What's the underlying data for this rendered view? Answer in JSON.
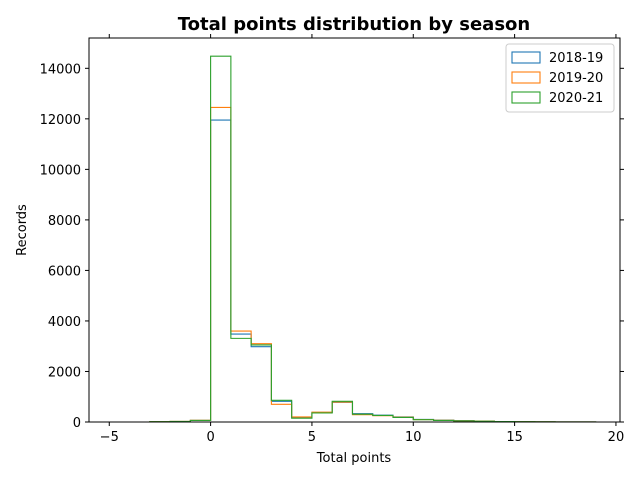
{
  "chart_data": {
    "type": "histogram-step",
    "title": "Total points distribution by season",
    "xlabel": "Total points",
    "ylabel": "Records",
    "xlim": [
      -6,
      20.2
    ],
    "ylim": [
      0,
      15200
    ],
    "xticks": [
      -5,
      0,
      5,
      10,
      15,
      20
    ],
    "yticks": [
      0,
      2000,
      4000,
      6000,
      8000,
      10000,
      12000,
      14000
    ],
    "legend_position": "top-right",
    "bin_edges": [
      -5,
      -4,
      -3,
      -2,
      -1,
      0,
      1,
      2,
      3,
      4,
      5,
      6,
      7,
      8,
      9,
      10,
      11,
      12,
      13,
      14,
      15,
      16,
      17,
      18,
      19
    ],
    "series": [
      {
        "name": "2018-19",
        "color": "#1f77b4",
        "counts": [
          0,
          0,
          10,
          20,
          60,
          11950,
          3480,
          2980,
          820,
          170,
          380,
          780,
          330,
          270,
          200,
          100,
          70,
          50,
          40,
          20,
          15,
          10,
          5,
          3
        ]
      },
      {
        "name": "2019-20",
        "color": "#ff7f0e",
        "counts": [
          0,
          0,
          15,
          25,
          65,
          12450,
          3600,
          3100,
          700,
          200,
          390,
          790,
          290,
          250,
          190,
          95,
          65,
          48,
          38,
          20,
          15,
          10,
          5,
          3
        ]
      },
      {
        "name": "2020-21",
        "color": "#2ca02c",
        "counts": [
          0,
          0,
          12,
          22,
          60,
          14480,
          3310,
          3050,
          860,
          150,
          360,
          820,
          310,
          260,
          180,
          90,
          60,
          45,
          35,
          18,
          14,
          9,
          5,
          3
        ]
      }
    ]
  }
}
